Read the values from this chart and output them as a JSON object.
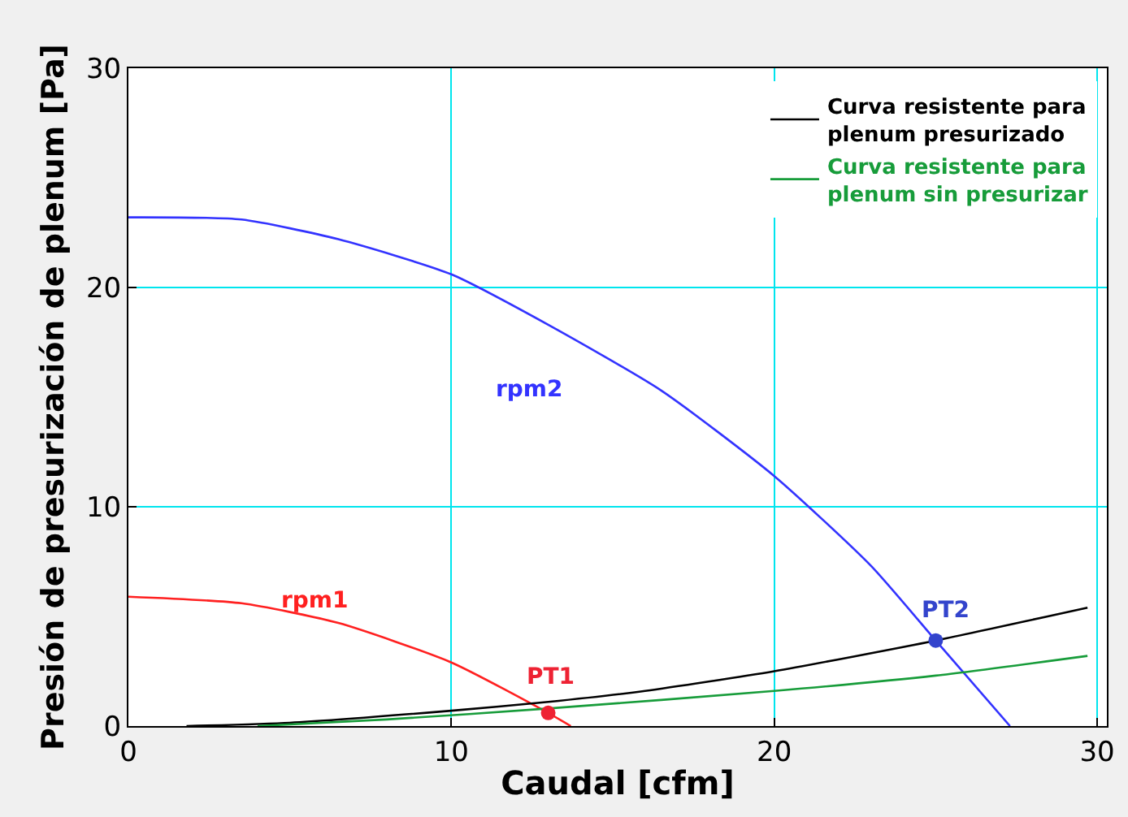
{
  "chart_data": {
    "type": "line",
    "xlabel": "Caudal [cfm]",
    "ylabel": "Presión de presurización de plenum [Pa]",
    "xlim": [
      0,
      30.3
    ],
    "ylim": [
      0,
      30
    ],
    "xticks": [
      0,
      10,
      20,
      30
    ],
    "yticks": [
      0,
      10,
      20,
      30
    ],
    "grid": true,
    "legend": "top right",
    "series": [
      {
        "color": "#3333ff",
        "x": [
          0,
          3.5,
          6.5,
          10,
          13,
          16.5,
          20,
          23,
          25,
          27.3
        ],
        "values": [
          23.2,
          23.1,
          22.2,
          20.6,
          18.3,
          15.3,
          11.4,
          7.3,
          3.9,
          0
        ]
      },
      {
        "color": "#ff2020",
        "x": [
          0,
          3.5,
          6.5,
          10,
          13,
          13.7
        ],
        "values": [
          5.9,
          5.6,
          4.7,
          2.9,
          0.6,
          0
        ]
      },
      {
        "name": "Curva resistente para plenum presurizado",
        "color": "#000000",
        "x": [
          1.8,
          5,
          10,
          13,
          16,
          20,
          25,
          29.7
        ],
        "values": [
          0,
          0.15,
          0.7,
          1.1,
          1.6,
          2.5,
          3.9,
          5.4
        ]
      },
      {
        "name": "Curva resistente para plenum sin presurizar",
        "color": "#179c3a",
        "x": [
          4,
          8,
          13,
          20,
          25,
          29.7
        ],
        "values": [
          0,
          0.3,
          0.8,
          1.6,
          2.3,
          3.2
        ]
      },
      {
        "type": "scatter",
        "marker": "circle",
        "color": "#ee2233",
        "x": [
          13
        ],
        "values": [
          0.6
        ]
      },
      {
        "type": "scatter",
        "marker": "circle",
        "color": "#3344cc",
        "x": [
          25
        ],
        "values": [
          3.9
        ]
      }
    ],
    "annotations": [
      {
        "text": "rpm2",
        "x": 13,
        "y": 18.3
      },
      {
        "text": "rpm1",
        "x": 6.5,
        "y": 4.7
      },
      {
        "text": "PT1",
        "x": 13,
        "y": 0.6
      },
      {
        "text": "PT2",
        "x": 25,
        "y": 3.9
      }
    ]
  }
}
